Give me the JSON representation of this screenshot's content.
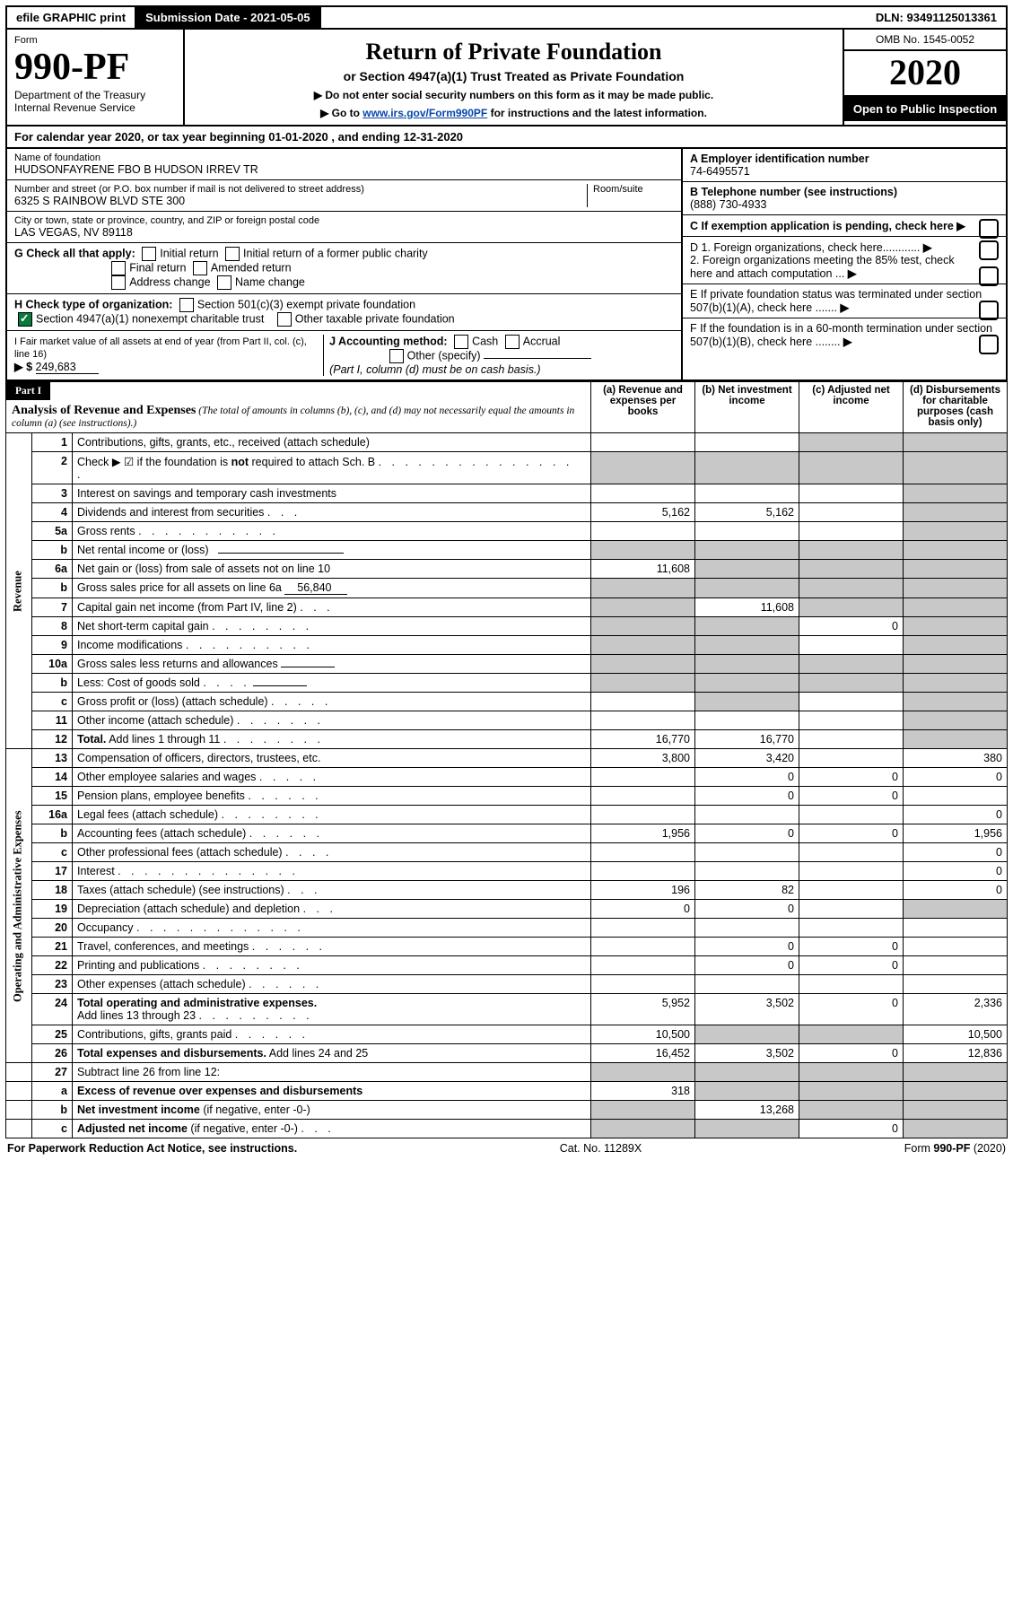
{
  "topbar": {
    "efile": "efile GRAPHIC print",
    "subdate_lbl": "Submission Date - ",
    "subdate": "2021-05-05",
    "dln_lbl": "DLN: ",
    "dln": "93491125013361"
  },
  "hdr": {
    "form": "Form",
    "formno": "990-PF",
    "dept": "Department of the Treasury",
    "irs": "Internal Revenue Service",
    "title": "Return of Private Foundation",
    "subtitle": "or Section 4947(a)(1) Trust Treated as Private Foundation",
    "note1": "▶ Do not enter social security numbers on this form as it may be made public.",
    "note2a": "▶ Go to ",
    "note2link": "www.irs.gov/Form990PF",
    "note2b": " for instructions and the latest information.",
    "omb": "OMB No. 1545-0052",
    "year": "2020",
    "open": "Open to Public Inspection"
  },
  "cal": {
    "a": "For calendar year 2020, or tax year beginning ",
    "start": "01-01-2020",
    "b": ", and ending ",
    "end": "12-31-2020"
  },
  "id": {
    "name_lbl": "Name of foundation",
    "name": "HUDSONFAYRENE FBO B HUDSON IRREV TR",
    "addr_lbl": "Number and street (or P.O. box number if mail is not delivered to street address)",
    "room_lbl": "Room/suite",
    "addr": "6325 S RAINBOW BLVD STE 300",
    "city_lbl": "City or town, state or province, country, and ZIP or foreign postal code",
    "city": "LAS VEGAS, NV  89118",
    "A_lbl": "A Employer identification number",
    "ein": "74-6495571",
    "B_lbl": "B Telephone number (see instructions)",
    "phone": "(888) 730-4933",
    "C_lbl": "C If exemption application is pending, check here"
  },
  "G": {
    "lbl": "G Check all that apply:",
    "items": [
      "Initial return",
      "Initial return of a former public charity",
      "Final return",
      "Amended return",
      "Address change",
      "Name change"
    ]
  },
  "H": {
    "lbl": "H Check type of organization:",
    "i1": "Section 501(c)(3) exempt private foundation",
    "i2": "Section 4947(a)(1) nonexempt charitable trust",
    "i3": "Other taxable private foundation"
  },
  "I": {
    "lbl": "I Fair market value of all assets at end of year (from Part II, col. (c), line 16)",
    "prefix": "▶ $",
    "val": "249,683"
  },
  "J": {
    "lbl": "J Accounting method:",
    "cash": "Cash",
    "accrual": "Accrual",
    "other": "Other (specify)",
    "note": "(Part I, column (d) must be on cash basis.)"
  },
  "D": {
    "d1": "D 1. Foreign organizations, check here............",
    "d2": "2. Foreign organizations meeting the 85% test, check here and attach computation ..."
  },
  "E": {
    "lbl": "E If private foundation status was terminated under section 507(b)(1)(A), check here ......."
  },
  "F": {
    "lbl": "F If the foundation is in a 60-month termination under section 507(b)(1)(B), check here ........"
  },
  "part1": {
    "label": "Part I",
    "title": "Analysis of Revenue and Expenses",
    "titlesub": "(The total of amounts in columns (b), (c), and (d) may not necessarily equal the amounts in column (a) (see instructions).)",
    "cols": {
      "a": "(a)  Revenue and expenses per books",
      "b": "(b)  Net investment income",
      "c": "(c)  Adjusted net income",
      "d": "(d)  Disbursements for charitable purposes (cash basis only)"
    }
  },
  "sections": {
    "rev": "Revenue",
    "op": "Operating and Administrative Expenses"
  },
  "rows": [
    {
      "sec": "rev",
      "n": "1",
      "d": "Contributions, gifts, grants, etc., received (attach schedule)",
      "a": "",
      "b": "",
      "c": "g",
      "dd": "g"
    },
    {
      "sec": "rev",
      "n": "2",
      "d": "Check ▶ ☑ if the foundation is <b>not</b> required to attach Sch. B <span class='dots'>. . . . . . . . . . . . . . . .</span>",
      "a": "g",
      "b": "g",
      "c": "g",
      "dd": "g"
    },
    {
      "sec": "rev",
      "n": "3",
      "d": "Interest on savings and temporary cash investments",
      "a": "",
      "b": "",
      "c": "",
      "dd": "g"
    },
    {
      "sec": "rev",
      "n": "4",
      "d": "Dividends and interest from securities <span class='dots'>. . .</span>",
      "a": "5,162",
      "b": "5,162",
      "c": "",
      "dd": "g"
    },
    {
      "sec": "rev",
      "n": "5a",
      "d": "Gross rents <span class='dots'>. . . . . . . . . . .</span>",
      "a": "",
      "b": "",
      "c": "",
      "dd": "g"
    },
    {
      "sec": "rev",
      "n": "b",
      "d": "Net rental income or (loss) &nbsp; <span class='ul' style='min-width:140px'></span>",
      "a": "g",
      "b": "g",
      "c": "g",
      "dd": "g"
    },
    {
      "sec": "rev",
      "n": "6a",
      "d": "Net gain or (loss) from sale of assets not on line 10",
      "a": "11,608",
      "b": "g",
      "c": "g",
      "dd": "g"
    },
    {
      "sec": "rev",
      "n": "b",
      "d": "Gross sales price for all assets on line 6a <span class='ul'>&nbsp;&nbsp;&nbsp;&nbsp;56,840</span>",
      "a": "g",
      "b": "g",
      "c": "g",
      "dd": "g"
    },
    {
      "sec": "rev",
      "n": "7",
      "d": "Capital gain net income (from Part IV, line 2) <span class='dots'>. . .</span>",
      "a": "g",
      "b": "11,608",
      "c": "g",
      "dd": "g"
    },
    {
      "sec": "rev",
      "n": "8",
      "d": "Net short-term capital gain <span class='dots'>. . . . . . . .</span>",
      "a": "g",
      "b": "g",
      "c": "0",
      "dd": "g"
    },
    {
      "sec": "rev",
      "n": "9",
      "d": "Income modifications <span class='dots'>. . . . . . . . . .</span>",
      "a": "g",
      "b": "g",
      "c": "",
      "dd": "g"
    },
    {
      "sec": "rev",
      "n": "10a",
      "d": "Gross sales less returns and allowances <span class='ul' style='min-width:60px'></span>",
      "a": "g",
      "b": "g",
      "c": "g",
      "dd": "g"
    },
    {
      "sec": "rev",
      "n": "b",
      "d": "Less: Cost of goods sold <span class='dots'>. . . .</span> <span class='ul' style='min-width:60px'></span>",
      "a": "g",
      "b": "g",
      "c": "g",
      "dd": "g"
    },
    {
      "sec": "rev",
      "n": "c",
      "d": "Gross profit or (loss) (attach schedule) <span class='dots'>. . . . .</span>",
      "a": "",
      "b": "g",
      "c": "",
      "dd": "g"
    },
    {
      "sec": "rev",
      "n": "11",
      "d": "Other income (attach schedule) <span class='dots'>. . . . . . .</span>",
      "a": "",
      "b": "",
      "c": "",
      "dd": "g"
    },
    {
      "sec": "rev",
      "n": "12",
      "d": "<b>Total.</b> Add lines 1 through 11 <span class='dots'>. . . . . . . .</span>",
      "a": "16,770",
      "b": "16,770",
      "c": "",
      "dd": "g"
    },
    {
      "sec": "op",
      "n": "13",
      "d": "Compensation of officers, directors, trustees, etc.",
      "a": "3,800",
      "b": "3,420",
      "c": "",
      "dd": "380"
    },
    {
      "sec": "op",
      "n": "14",
      "d": "Other employee salaries and wages <span class='dots'>. . . . .</span>",
      "a": "",
      "b": "0",
      "c": "0",
      "dd": "0"
    },
    {
      "sec": "op",
      "n": "15",
      "d": "Pension plans, employee benefits <span class='dots'>. . . . . .</span>",
      "a": "",
      "b": "0",
      "c": "0",
      "dd": ""
    },
    {
      "sec": "op",
      "n": "16a",
      "d": "Legal fees (attach schedule) <span class='dots'>. . . . . . . .</span>",
      "a": "",
      "b": "",
      "c": "",
      "dd": "0"
    },
    {
      "sec": "op",
      "n": "b",
      "d": "Accounting fees (attach schedule) <span class='dots'>. . . . . .</span>",
      "a": "1,956",
      "b": "0",
      "c": "0",
      "dd": "1,956"
    },
    {
      "sec": "op",
      "n": "c",
      "d": "Other professional fees (attach schedule) <span class='dots'>. . . .</span>",
      "a": "",
      "b": "",
      "c": "",
      "dd": "0"
    },
    {
      "sec": "op",
      "n": "17",
      "d": "Interest <span class='dots'>. . . . . . . . . . . . . .</span>",
      "a": "",
      "b": "",
      "c": "",
      "dd": "0"
    },
    {
      "sec": "op",
      "n": "18",
      "d": "Taxes (attach schedule) (see instructions) <span class='dots'>. . .</span>",
      "a": "196",
      "b": "82",
      "c": "",
      "dd": "0"
    },
    {
      "sec": "op",
      "n": "19",
      "d": "Depreciation (attach schedule) and depletion <span class='dots'>. . .</span>",
      "a": "0",
      "b": "0",
      "c": "",
      "dd": "g"
    },
    {
      "sec": "op",
      "n": "20",
      "d": "Occupancy <span class='dots'>. . . . . . . . . . . . .</span>",
      "a": "",
      "b": "",
      "c": "",
      "dd": ""
    },
    {
      "sec": "op",
      "n": "21",
      "d": "Travel, conferences, and meetings <span class='dots'>. . . . . .</span>",
      "a": "",
      "b": "0",
      "c": "0",
      "dd": ""
    },
    {
      "sec": "op",
      "n": "22",
      "d": "Printing and publications <span class='dots'>. . . . . . . .</span>",
      "a": "",
      "b": "0",
      "c": "0",
      "dd": ""
    },
    {
      "sec": "op",
      "n": "23",
      "d": "Other expenses (attach schedule) <span class='dots'>. . . . . .</span>",
      "a": "",
      "b": "",
      "c": "",
      "dd": ""
    },
    {
      "sec": "op",
      "n": "24",
      "d": "<b>Total operating and administrative expenses.</b><br>Add lines 13 through 23 <span class='dots'>. . . . . . . . .</span>",
      "a": "5,952",
      "b": "3,502",
      "c": "0",
      "dd": "2,336"
    },
    {
      "sec": "op",
      "n": "25",
      "d": "Contributions, gifts, grants paid <span class='dots'>. . . . . .</span>",
      "a": "10,500",
      "b": "g",
      "c": "g",
      "dd": "10,500"
    },
    {
      "sec": "op",
      "n": "26",
      "d": "<b>Total expenses and disbursements.</b> Add lines 24 and 25",
      "a": "16,452",
      "b": "3,502",
      "c": "0",
      "dd": "12,836"
    },
    {
      "sec": "",
      "n": "27",
      "d": "Subtract line 26 from line 12:",
      "a": "g",
      "b": "g",
      "c": "g",
      "dd": "g"
    },
    {
      "sec": "",
      "n": "a",
      "d": "<b>Excess of revenue over expenses and disbursements</b>",
      "a": "318",
      "b": "g",
      "c": "g",
      "dd": "g"
    },
    {
      "sec": "",
      "n": "b",
      "d": "<b>Net investment income</b> (if negative, enter -0-)",
      "a": "g",
      "b": "13,268",
      "c": "g",
      "dd": "g"
    },
    {
      "sec": "",
      "n": "c",
      "d": "<b>Adjusted net income</b> (if negative, enter -0-) <span class='dots'>. . .</span>",
      "a": "g",
      "b": "g",
      "c": "0",
      "dd": "g"
    }
  ],
  "ftr": {
    "a": "For Paperwork Reduction Act Notice, see instructions.",
    "b": "Cat. No. 11289X",
    "c": "Form 990-PF (2020)"
  }
}
